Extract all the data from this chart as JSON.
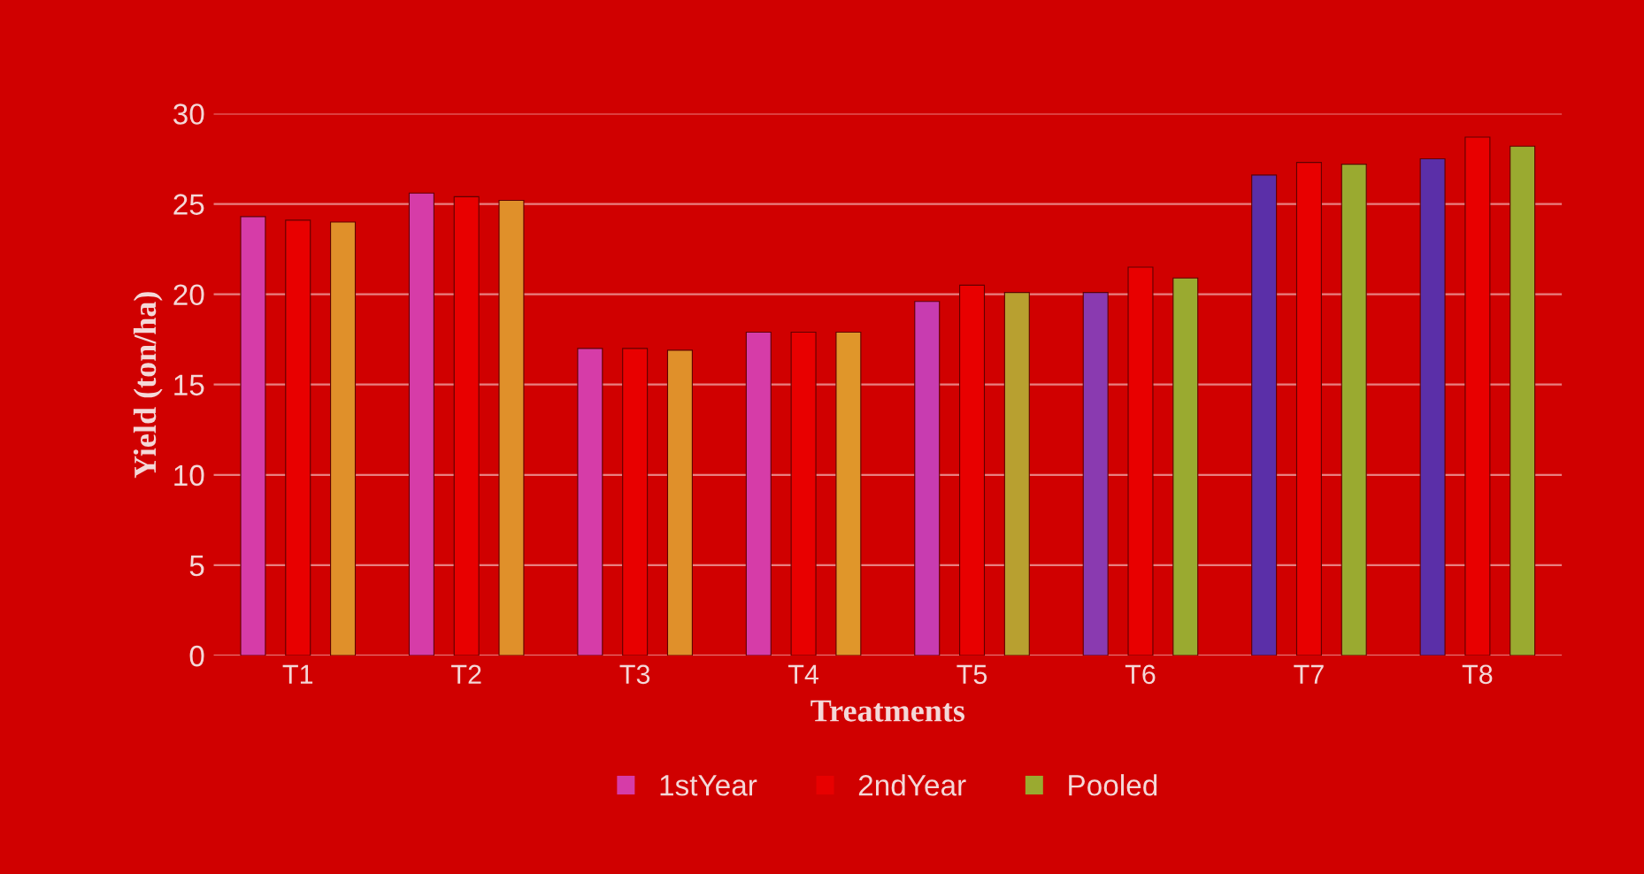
{
  "chart_data": {
    "type": "bar",
    "xlabel": "Treatments",
    "ylabel": "Yield (ton/ha)",
    "categories": [
      "T1",
      "T2",
      "T3",
      "T4",
      "T5",
      "T6",
      "T7",
      "T8"
    ],
    "series": [
      {
        "name": "1stYear",
        "color": "#d63ca8",
        "colors": [
          "#d63ca8",
          "#d63ca8",
          "#d63ca8",
          "#d63ca8",
          "#c83cb0",
          "#8a3ab0",
          "#5b2fa8",
          "#5b2fa8"
        ],
        "values": [
          24.3,
          25.6,
          17.0,
          17.9,
          19.6,
          20.1,
          26.6,
          27.5
        ]
      },
      {
        "name": "2ndYear",
        "color": "#e80000",
        "values": [
          24.1,
          25.4,
          17.0,
          17.9,
          20.5,
          21.5,
          27.3,
          28.7
        ]
      },
      {
        "name": "Pooled",
        "color": "#9aaa30",
        "colors": [
          "#e0902a",
          "#e0902a",
          "#e0902a",
          "#e0962a",
          "#b8a030",
          "#9aaa30",
          "#9aaa30",
          "#9aaa30"
        ],
        "values": [
          24.0,
          25.2,
          16.9,
          17.9,
          20.1,
          20.9,
          27.2,
          28.2
        ]
      }
    ],
    "ylim": [
      0,
      30
    ],
    "yticks": [
      0,
      5,
      10,
      15,
      20,
      25,
      30
    ],
    "grid": "y",
    "legend": "bottom"
  }
}
